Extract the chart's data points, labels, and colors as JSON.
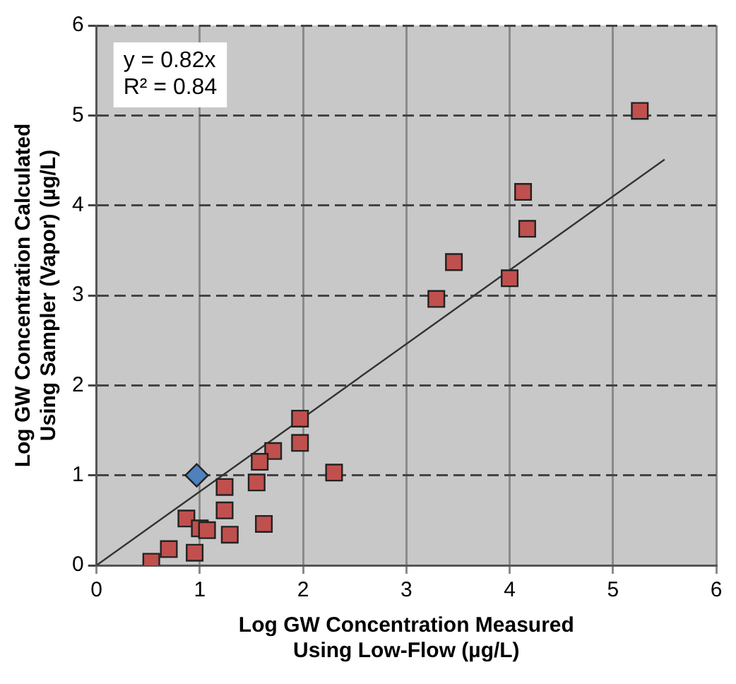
{
  "chart_data": {
    "type": "scatter",
    "xlabel": "Log GW Concentration Measured Using Low-Flow (µg/L)",
    "ylabel": "Log GW Concentration Calculated Using Sampler (Vapor) (µg/L)",
    "annotations": [
      "y = 0.82x",
      "R² = 0.84"
    ],
    "xlim": [
      0,
      6
    ],
    "xticks": [
      0,
      1,
      2,
      3,
      4,
      5,
      6
    ],
    "ylim": [
      0,
      6
    ],
    "yticks": [
      0,
      1,
      2,
      3,
      4,
      5,
      6
    ],
    "grid": true,
    "series": [
      {
        "type": "scatter",
        "marker": "square",
        "color": "#c0504d",
        "x": [
          5.26,
          4.13,
          4.17,
          3.46,
          4.0,
          3.29,
          1.97,
          1.97,
          1.71,
          1.58,
          1.55,
          2.3,
          1.24,
          1.24,
          0.87,
          1.0,
          1.07,
          1.29,
          1.62,
          0.7,
          0.95,
          0.53
        ],
        "values": [
          5.05,
          4.15,
          3.74,
          3.37,
          3.19,
          2.96,
          1.63,
          1.36,
          1.27,
          1.15,
          0.92,
          1.03,
          0.87,
          0.61,
          0.52,
          0.41,
          0.39,
          0.34,
          0.46,
          0.18,
          0.14,
          0.04
        ]
      },
      {
        "type": "scatter",
        "marker": "diamond",
        "color": "#4f81bd",
        "x": [
          0.97
        ],
        "values": [
          1.0
        ]
      },
      {
        "type": "line",
        "marker": "none",
        "color": "#333333",
        "x": [
          0,
          5.5
        ],
        "values": [
          0,
          4.51
        ]
      }
    ]
  }
}
